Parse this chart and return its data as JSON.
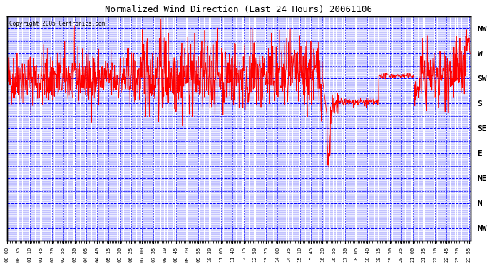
{
  "title": "Normalized Wind Direction (Last 24 Hours) 20061106",
  "copyright": "Copyright 2006 Certronics.com",
  "background_color": "#ffffff",
  "plot_bg_color": "#ffffff",
  "line_color": "#ff0000",
  "grid_color": "#0000ff",
  "border_color": "#000000",
  "ytick_labels": [
    "NW",
    "W",
    "SW",
    "S",
    "SE",
    "E",
    "NE",
    "N",
    "NW"
  ],
  "ytick_values": [
    8,
    7,
    6,
    5,
    4,
    3,
    2,
    1,
    0
  ],
  "ylim": [
    -0.5,
    8.5
  ],
  "figsize": [
    6.9,
    3.75
  ],
  "dpi": 100
}
